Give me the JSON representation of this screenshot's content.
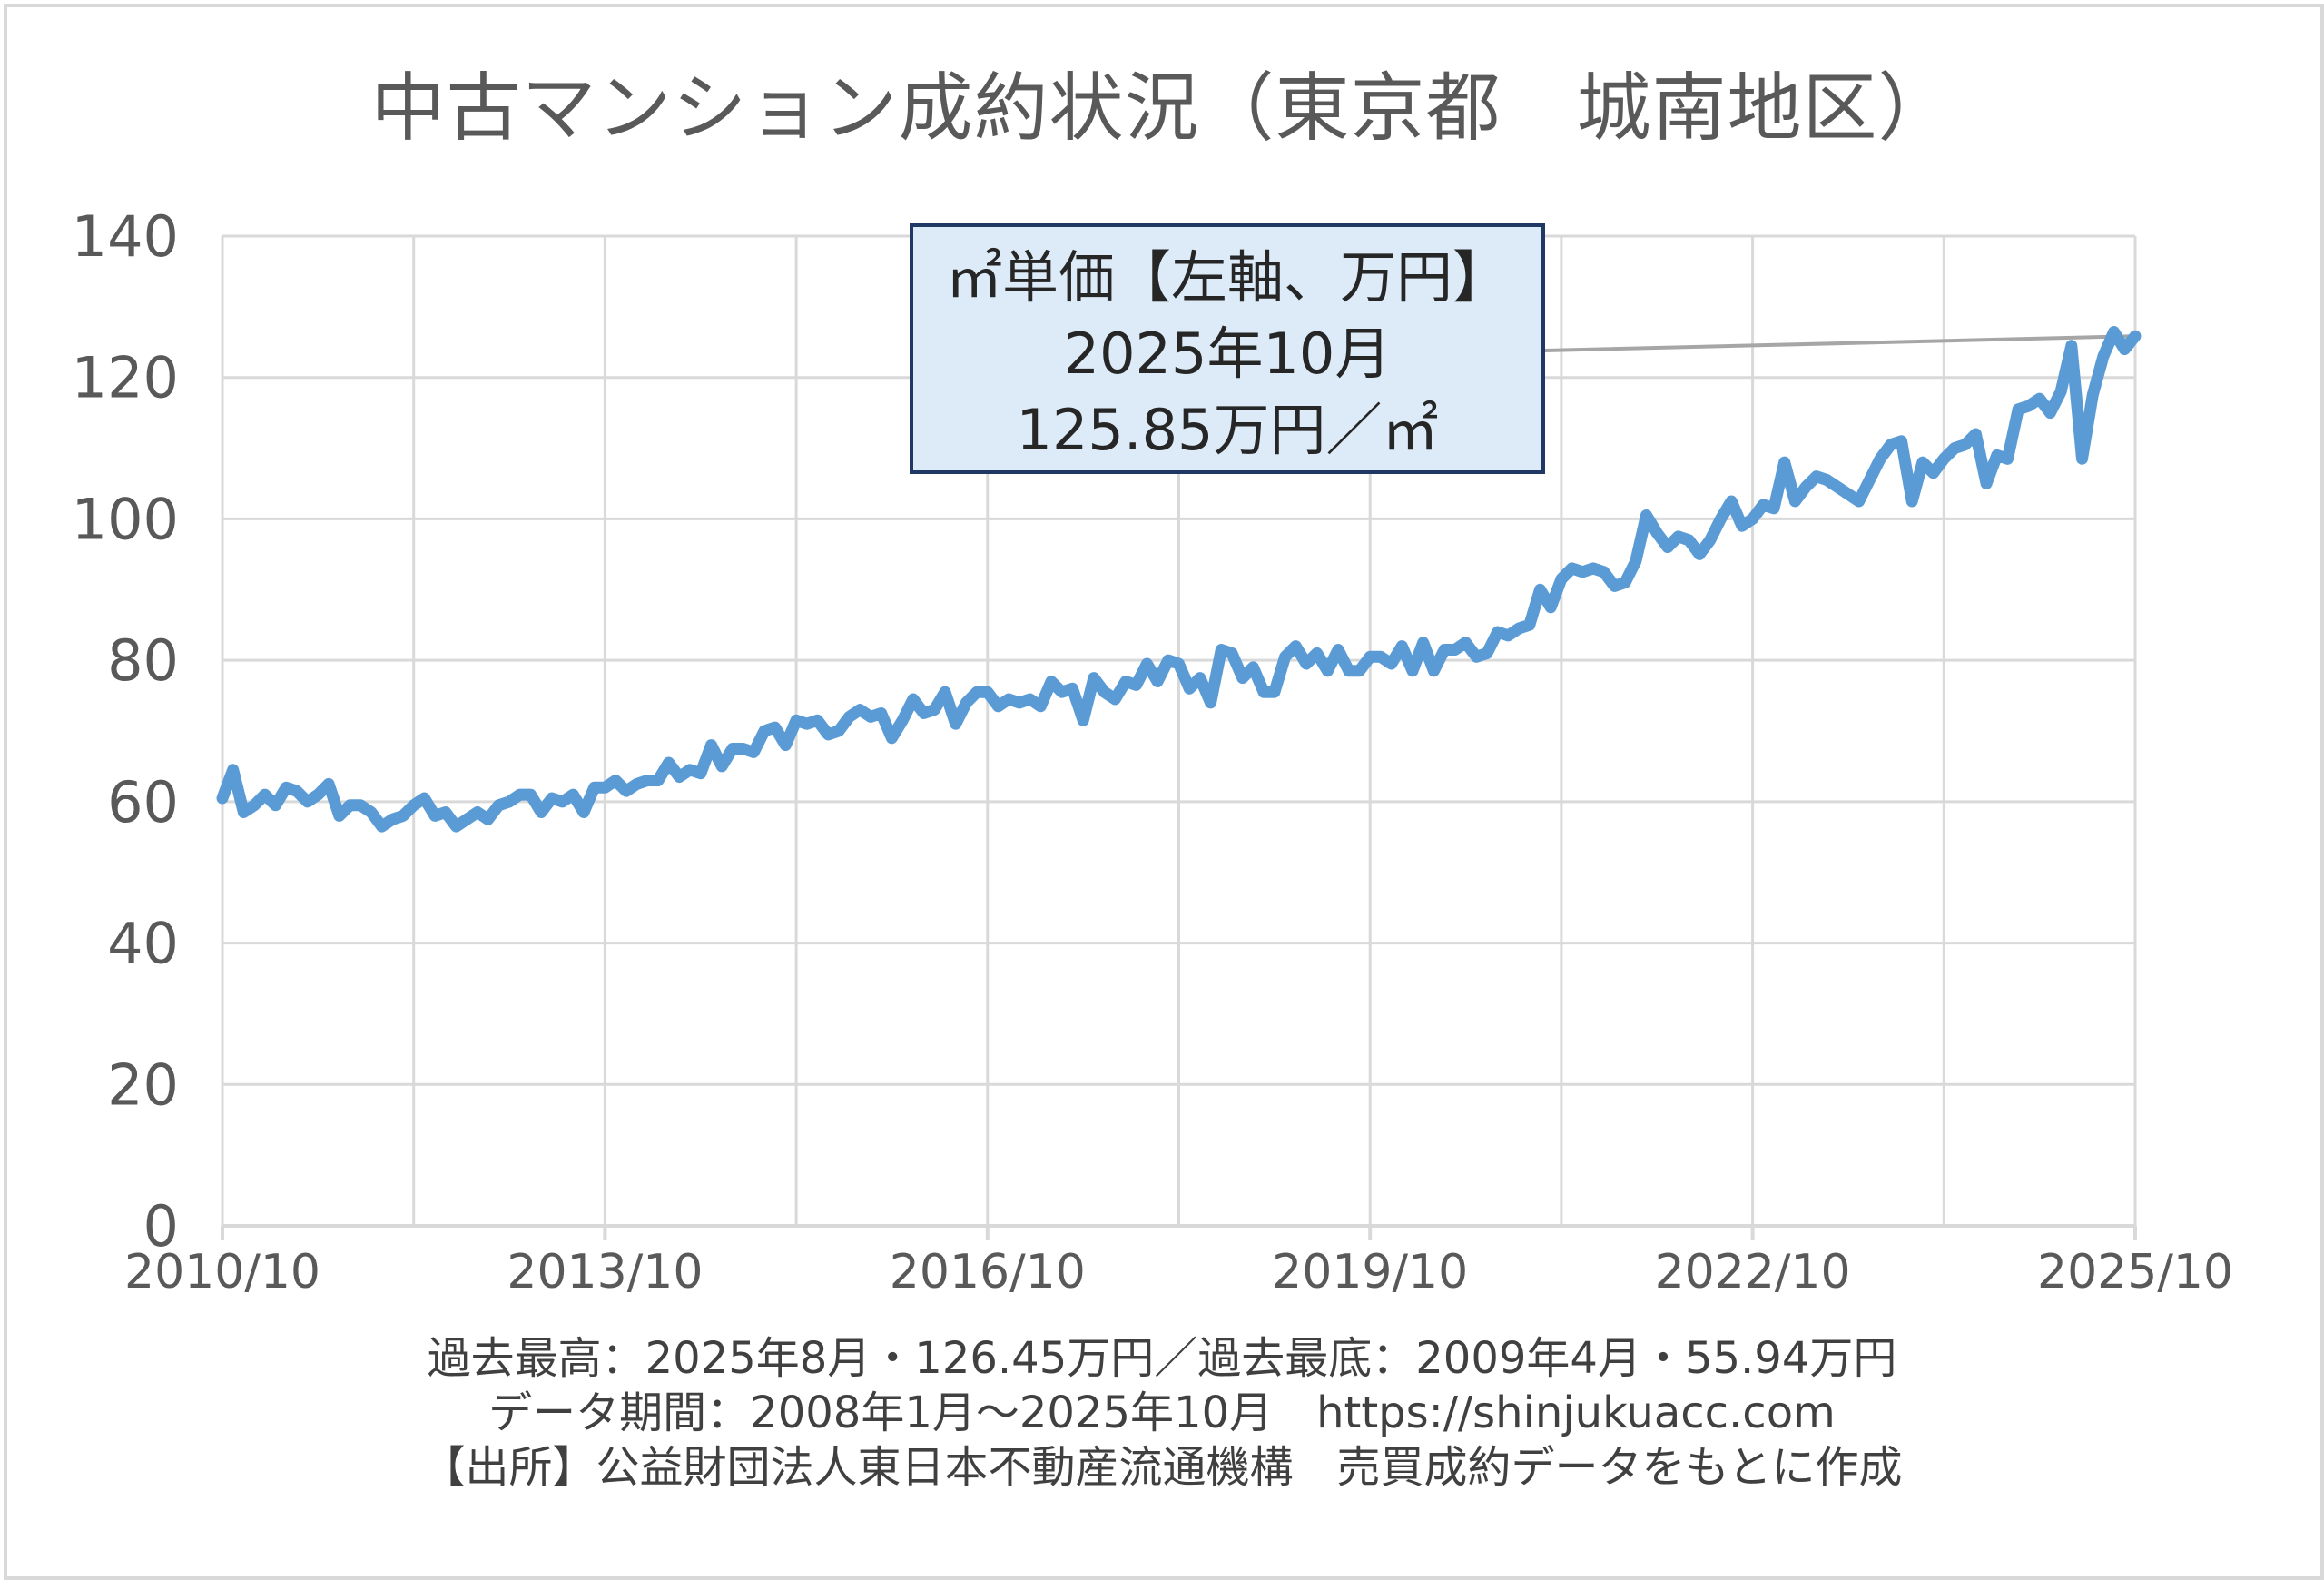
{
  "title": "中古マンション成約状況（東京都　城南地区）",
  "callout": {
    "line1": "㎡単価【左軸、万円】",
    "line2": "2025年10月",
    "line3": "125.85万円／㎡"
  },
  "footer": {
    "line1": "過去最高：2025年8月・126.45万円／過去最底：2009年4月・55.94万円",
    "line2": "データ期間：2008年1月～2025年10月　https://shinjukuacc.com",
    "line3": "【出所】公益財団法人東日本不動産流通機構　売買成約データをもとに作成"
  },
  "colors": {
    "series": "#5b9bd5",
    "grid": "#d9d9d9",
    "axis_text": "#595959",
    "callout_fill": "#dcebf7",
    "callout_border": "#203864",
    "leader_line": "#a6a6a6"
  },
  "chart_data": {
    "type": "line",
    "title": "中古マンション成約状況（東京都　城南地区）",
    "ylim": [
      0,
      140
    ],
    "yticks": [
      0,
      20,
      40,
      60,
      80,
      100,
      120,
      140
    ],
    "xrange": [
      "2010/10",
      "2025/10"
    ],
    "xticks": [
      "2010/10",
      "2013/10",
      "2016/10",
      "2019/10",
      "2022/10",
      "2025/10"
    ],
    "grid": true,
    "series": [
      {
        "name": "㎡単価【左軸、万円】",
        "x": [
          "2010/10",
          "2010/11",
          "2010/12",
          "2011/01",
          "2011/02",
          "2011/03",
          "2011/04",
          "2011/05",
          "2011/06",
          "2011/07",
          "2011/08",
          "2011/09",
          "2011/10",
          "2011/11",
          "2011/12",
          "2012/01",
          "2012/02",
          "2012/03",
          "2012/04",
          "2012/05",
          "2012/06",
          "2012/07",
          "2012/08",
          "2012/09",
          "2012/10",
          "2012/11",
          "2012/12",
          "2013/01",
          "2013/02",
          "2013/03",
          "2013/04",
          "2013/05",
          "2013/06",
          "2013/07",
          "2013/08",
          "2013/09",
          "2013/10",
          "2013/11",
          "2013/12",
          "2014/01",
          "2014/02",
          "2014/03",
          "2014/04",
          "2014/05",
          "2014/06",
          "2014/07",
          "2014/08",
          "2014/09",
          "2014/10",
          "2014/11",
          "2014/12",
          "2015/01",
          "2015/02",
          "2015/03",
          "2015/04",
          "2015/05",
          "2015/06",
          "2015/07",
          "2015/08",
          "2015/09",
          "2015/10",
          "2015/11",
          "2015/12",
          "2016/01",
          "2016/02",
          "2016/03",
          "2016/04",
          "2016/05",
          "2016/06",
          "2016/07",
          "2016/08",
          "2016/09",
          "2016/10",
          "2016/11",
          "2016/12",
          "2017/01",
          "2017/02",
          "2017/03",
          "2017/04",
          "2017/05",
          "2017/06",
          "2017/07",
          "2017/08",
          "2017/09",
          "2017/10",
          "2017/11",
          "2017/12",
          "2018/01",
          "2018/02",
          "2018/03",
          "2018/04",
          "2018/05",
          "2018/06",
          "2018/07",
          "2018/08",
          "2018/09",
          "2018/10",
          "2018/11",
          "2018/12",
          "2019/01",
          "2019/02",
          "2019/03",
          "2019/04",
          "2019/05",
          "2019/06",
          "2019/07",
          "2019/08",
          "2019/09",
          "2019/10",
          "2019/11",
          "2019/12",
          "2020/01",
          "2020/02",
          "2020/03",
          "2020/04",
          "2020/05",
          "2020/06",
          "2020/07",
          "2020/08",
          "2020/09",
          "2020/10",
          "2020/11",
          "2020/12",
          "2021/01",
          "2021/02",
          "2021/03",
          "2021/04",
          "2021/05",
          "2021/06",
          "2021/07",
          "2021/08",
          "2021/09",
          "2021/10",
          "2021/11",
          "2021/12",
          "2022/01",
          "2022/02",
          "2022/03",
          "2022/04",
          "2022/05",
          "2022/06",
          "2022/07",
          "2022/08",
          "2022/09",
          "2022/10",
          "2022/11",
          "2022/12",
          "2023/01",
          "2023/02",
          "2023/03",
          "2023/04",
          "2023/05",
          "2023/06",
          "2023/07",
          "2023/08",
          "2023/09",
          "2023/10",
          "2023/11",
          "2023/12",
          "2024/01",
          "2024/02",
          "2024/03",
          "2024/04",
          "2024/05",
          "2024/06",
          "2024/07",
          "2024/08",
          "2024/09",
          "2024/10",
          "2024/11",
          "2024/12",
          "2025/01",
          "2025/02",
          "2025/03",
          "2025/04",
          "2025/05",
          "2025/06",
          "2025/07",
          "2025/08",
          "2025/09",
          "2025/10"
        ],
        "values": [
          60.5,
          64.5,
          58.5,
          59.5,
          61,
          59.5,
          62,
          61.5,
          60,
          61,
          62.5,
          58,
          59.5,
          59.5,
          58.5,
          56.5,
          57.5,
          58,
          59.5,
          60.5,
          58,
          58.5,
          56.5,
          57.5,
          58.5,
          57.5,
          59.5,
          60,
          61,
          61,
          58.5,
          60.5,
          60,
          61,
          58.5,
          62,
          62,
          63,
          61.5,
          62.5,
          63,
          63,
          65.5,
          63.5,
          64.5,
          64,
          68,
          65,
          67.5,
          67.5,
          67,
          70,
          70.5,
          68,
          71.5,
          71,
          71.5,
          69.5,
          70,
          72,
          73,
          72,
          72.5,
          69,
          71.5,
          74.5,
          72.5,
          73,
          75.5,
          71,
          74,
          75.5,
          75.5,
          73.5,
          74.5,
          74,
          74.5,
          73.5,
          77,
          75.5,
          76,
          71.5,
          77.5,
          75.5,
          74.5,
          77,
          76.5,
          79.5,
          77,
          80,
          79.5,
          76,
          77.5,
          74,
          81.5,
          81,
          77.5,
          79,
          75.5,
          75.5,
          80.5,
          82,
          79.5,
          81,
          78.5,
          81.5,
          78.5,
          78.5,
          80.5,
          80.5,
          79.5,
          82,
          78.5,
          82.5,
          78.5,
          81.5,
          81.5,
          82.5,
          80.5,
          81,
          84,
          83.5,
          84.5,
          85,
          90,
          87.5,
          91.5,
          93,
          92.5,
          93,
          92.5,
          90.5,
          91,
          94,
          100.5,
          98,
          96,
          97.5,
          97,
          95,
          97,
          100,
          102.5,
          99,
          100,
          102,
          101.5,
          108,
          102.5,
          104.5,
          106,
          105.5,
          104.5,
          103.5,
          102.5,
          105.5,
          108.5,
          110.5,
          111,
          102.5,
          108,
          106.5,
          108.5,
          110,
          110.5,
          112,
          105,
          109,
          108.5,
          115.5,
          116,
          117,
          115,
          118,
          124.5,
          108.5,
          117.5,
          123,
          126.45,
          124,
          125.85
        ]
      }
    ]
  }
}
